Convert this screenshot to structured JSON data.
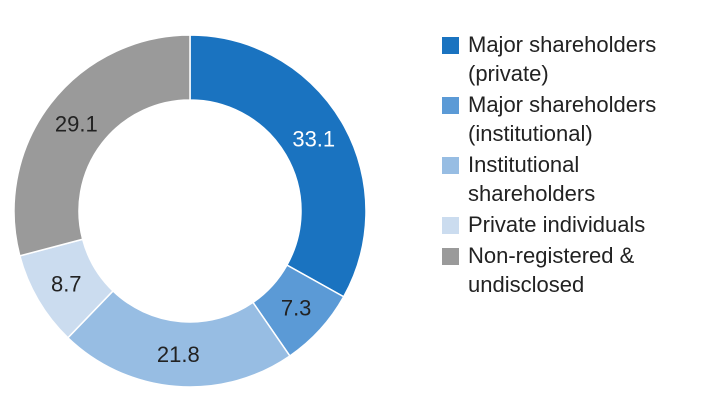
{
  "chart_data": {
    "type": "pie",
    "donut": true,
    "legend_position": "right",
    "slices": [
      {
        "name": "Major shareholders\n(private)",
        "value": 33.1,
        "color": "#1a73c0",
        "label_color": "#ffffff"
      },
      {
        "name": "Major shareholders\n(institutional)",
        "value": 7.3,
        "color": "#5b9ad6",
        "label_color": "#222222"
      },
      {
        "name": "Institutional\nshareholders",
        "value": 21.8,
        "color": "#97bde3",
        "label_color": "#222222"
      },
      {
        "name": "Private individuals",
        "value": 8.7,
        "color": "#cbdcef",
        "label_color": "#222222"
      },
      {
        "name": "Non-registered &\nundisclosed",
        "value": 29.1,
        "color": "#9a9a9a",
        "label_color": "#222222"
      }
    ]
  }
}
